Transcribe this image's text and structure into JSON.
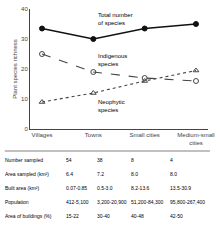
{
  "chart_data": {
    "type": "line",
    "categories": [
      "Villages",
      "Towns",
      "Small cities",
      "Medium-small\ncities"
    ],
    "series": [
      {
        "name": "Total number\nof species",
        "color": "#111111",
        "marker": "circle",
        "line_style": "solid",
        "values": [
          33.5,
          30.0,
          33.5,
          35.0
        ]
      },
      {
        "name": "Indigenous\nspecies",
        "color": "#444444",
        "marker": "circle-open",
        "line_style": "dash",
        "values": [
          25.0,
          19.0,
          17.0,
          16.0
        ]
      },
      {
        "name": "Neophytic\nspecies",
        "color": "#444444",
        "marker": "triangle-up-open",
        "line_style": "dot",
        "values": [
          9.0,
          12.0,
          16.0,
          19.5
        ]
      }
    ],
    "ylabel": "Plant species richness",
    "ylim": [
      0,
      40
    ],
    "yticks": [
      0,
      10,
      20,
      30,
      40
    ],
    "grid": false,
    "table": [
      [
        "Number sampled",
        "54",
        "38",
        "8",
        "4"
      ],
      [
        "Area sampled (km²)",
        "6.4",
        "7.2",
        "8.0",
        "8.0"
      ],
      [
        "Built area (km²)",
        "0.07-0.85",
        "0.5-3.0",
        "8.2-13.6",
        "13.5-30.9"
      ],
      [
        "Population",
        "412-5,100",
        "3,200-20,900",
        "51,200-84,300",
        "95,800-267,400"
      ],
      [
        "Area of buildings (%)",
        "15-22",
        "30-40",
        "40-48",
        "42-50"
      ]
    ]
  }
}
